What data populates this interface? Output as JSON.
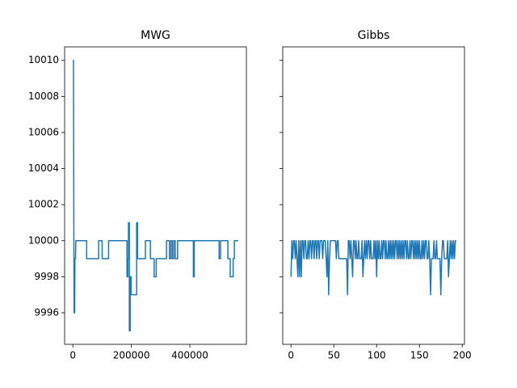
{
  "chart_data": [
    {
      "type": "line",
      "title": "MWG",
      "color": "#1f77b4",
      "x": [
        0,
        2000,
        2500,
        4000,
        6000,
        7000,
        9000,
        10000,
        47000,
        47000,
        88000,
        88000,
        100000,
        100000,
        122000,
        122000,
        185000,
        185000,
        188000,
        188000,
        190000,
        190000,
        193000,
        193000,
        196000,
        196000,
        199000,
        199000,
        218000,
        218000,
        221000,
        221000,
        248000,
        248000,
        265000,
        265000,
        278000,
        278000,
        285000,
        285000,
        320000,
        320000,
        330000,
        330000,
        335000,
        335000,
        340000,
        340000,
        345000,
        345000,
        350000,
        350000,
        358000,
        358000,
        412000,
        412000,
        415000,
        415000,
        500000,
        500000,
        505000,
        505000,
        530000,
        530000,
        538000,
        538000,
        548000,
        548000,
        552000,
        552000,
        565000
      ],
      "values": [
        10010,
        10010,
        10006,
        9996,
        9996,
        9999,
        9999,
        10000,
        10000,
        9999,
        9999,
        10000,
        10000,
        9999,
        9999,
        10000,
        10000,
        9998,
        9998,
        9999,
        9999,
        10001,
        10001,
        9995,
        9995,
        9998,
        9998,
        9997,
        9997,
        10001,
        10001,
        9999,
        9999,
        10000,
        10000,
        9999,
        9999,
        9998,
        9998,
        9999,
        9999,
        10000,
        10000,
        9999,
        9999,
        10000,
        10000,
        9999,
        9999,
        10000,
        10000,
        9999,
        9999,
        10000,
        10000,
        9998,
        9998,
        10000,
        10000,
        9999,
        9999,
        10000,
        10000,
        9999,
        9999,
        9998,
        9998,
        9999,
        9999,
        10000,
        10000
      ],
      "xlim": [
        -28250,
        593250
      ],
      "xticks": [
        0,
        200000,
        400000
      ],
      "ylim": [
        9994.25,
        10010.75
      ],
      "yticks": [
        9996,
        9998,
        10000,
        10002,
        10004,
        10006,
        10008,
        10010
      ],
      "ytick_labels": true
    },
    {
      "type": "line",
      "title": "Gibbs",
      "color": "#1f77b4",
      "values": [
        9998,
        10000,
        9999,
        10000,
        10000,
        9999,
        10000,
        9999,
        9998,
        10000,
        9998,
        10000,
        9998,
        10000,
        10000,
        9999,
        10000,
        10000,
        9999,
        9999,
        10000,
        9999,
        10000,
        10000,
        9999,
        10000,
        10000,
        9999,
        10000,
        10000,
        9999,
        10000,
        10000,
        9999,
        10000,
        10000,
        10000,
        9999,
        10000,
        10000,
        10000,
        9999,
        9998,
        10000,
        9997,
        9999,
        10000,
        10000,
        10000,
        10000,
        10000,
        10000,
        10000,
        9999,
        10000,
        10000,
        9999,
        9999,
        9999,
        9999,
        9999,
        9999,
        9999,
        9999,
        9999,
        9999,
        9997,
        10000,
        10000,
        9999,
        10000,
        9999,
        9998,
        10000,
        10000,
        9999,
        10000,
        9999,
        9999,
        10000,
        9999,
        9999,
        9999,
        10000,
        9998,
        9999,
        10000,
        9999,
        10000,
        9999,
        10000,
        10000,
        9999,
        10000,
        9999,
        9999,
        9999,
        10000,
        9999,
        10000,
        9998,
        10000,
        9999,
        10000,
        9999,
        9999,
        10000,
        9999,
        10000,
        10000,
        9999,
        10000,
        9999,
        9999,
        10000,
        9999,
        10000,
        9999,
        10000,
        9999,
        10000,
        9999,
        10000,
        10000,
        9999,
        10000,
        9999,
        10000,
        9999,
        10000,
        9999,
        10000,
        9999,
        10000,
        10000,
        9999,
        10000,
        9999,
        9999,
        10000,
        9999,
        10000,
        10000,
        9999,
        10000,
        9999,
        10000,
        9999,
        10000,
        9999,
        10000,
        9999,
        9999,
        10000,
        9999,
        10000,
        9999,
        10000,
        10000,
        9999,
        9999,
        10000,
        9999,
        9997,
        9999,
        9999,
        9999,
        10000,
        9999,
        9999,
        10000,
        9999,
        9999,
        9999,
        9999,
        9997,
        9999,
        10000,
        10000,
        9999,
        9999,
        9999,
        9999,
        10000,
        9998,
        9999,
        10000,
        9999,
        10000,
        9999,
        10000,
        9999,
        10000,
        10000
      ],
      "xlim": [
        -9.65,
        202.65
      ],
      "xticks": [
        0,
        50,
        100,
        150,
        200
      ],
      "ylim": [
        9994.25,
        10010.75
      ],
      "yticks": [
        9996,
        9998,
        10000,
        10002,
        10004,
        10006,
        10008,
        10010
      ],
      "ytick_labels": false
    }
  ]
}
